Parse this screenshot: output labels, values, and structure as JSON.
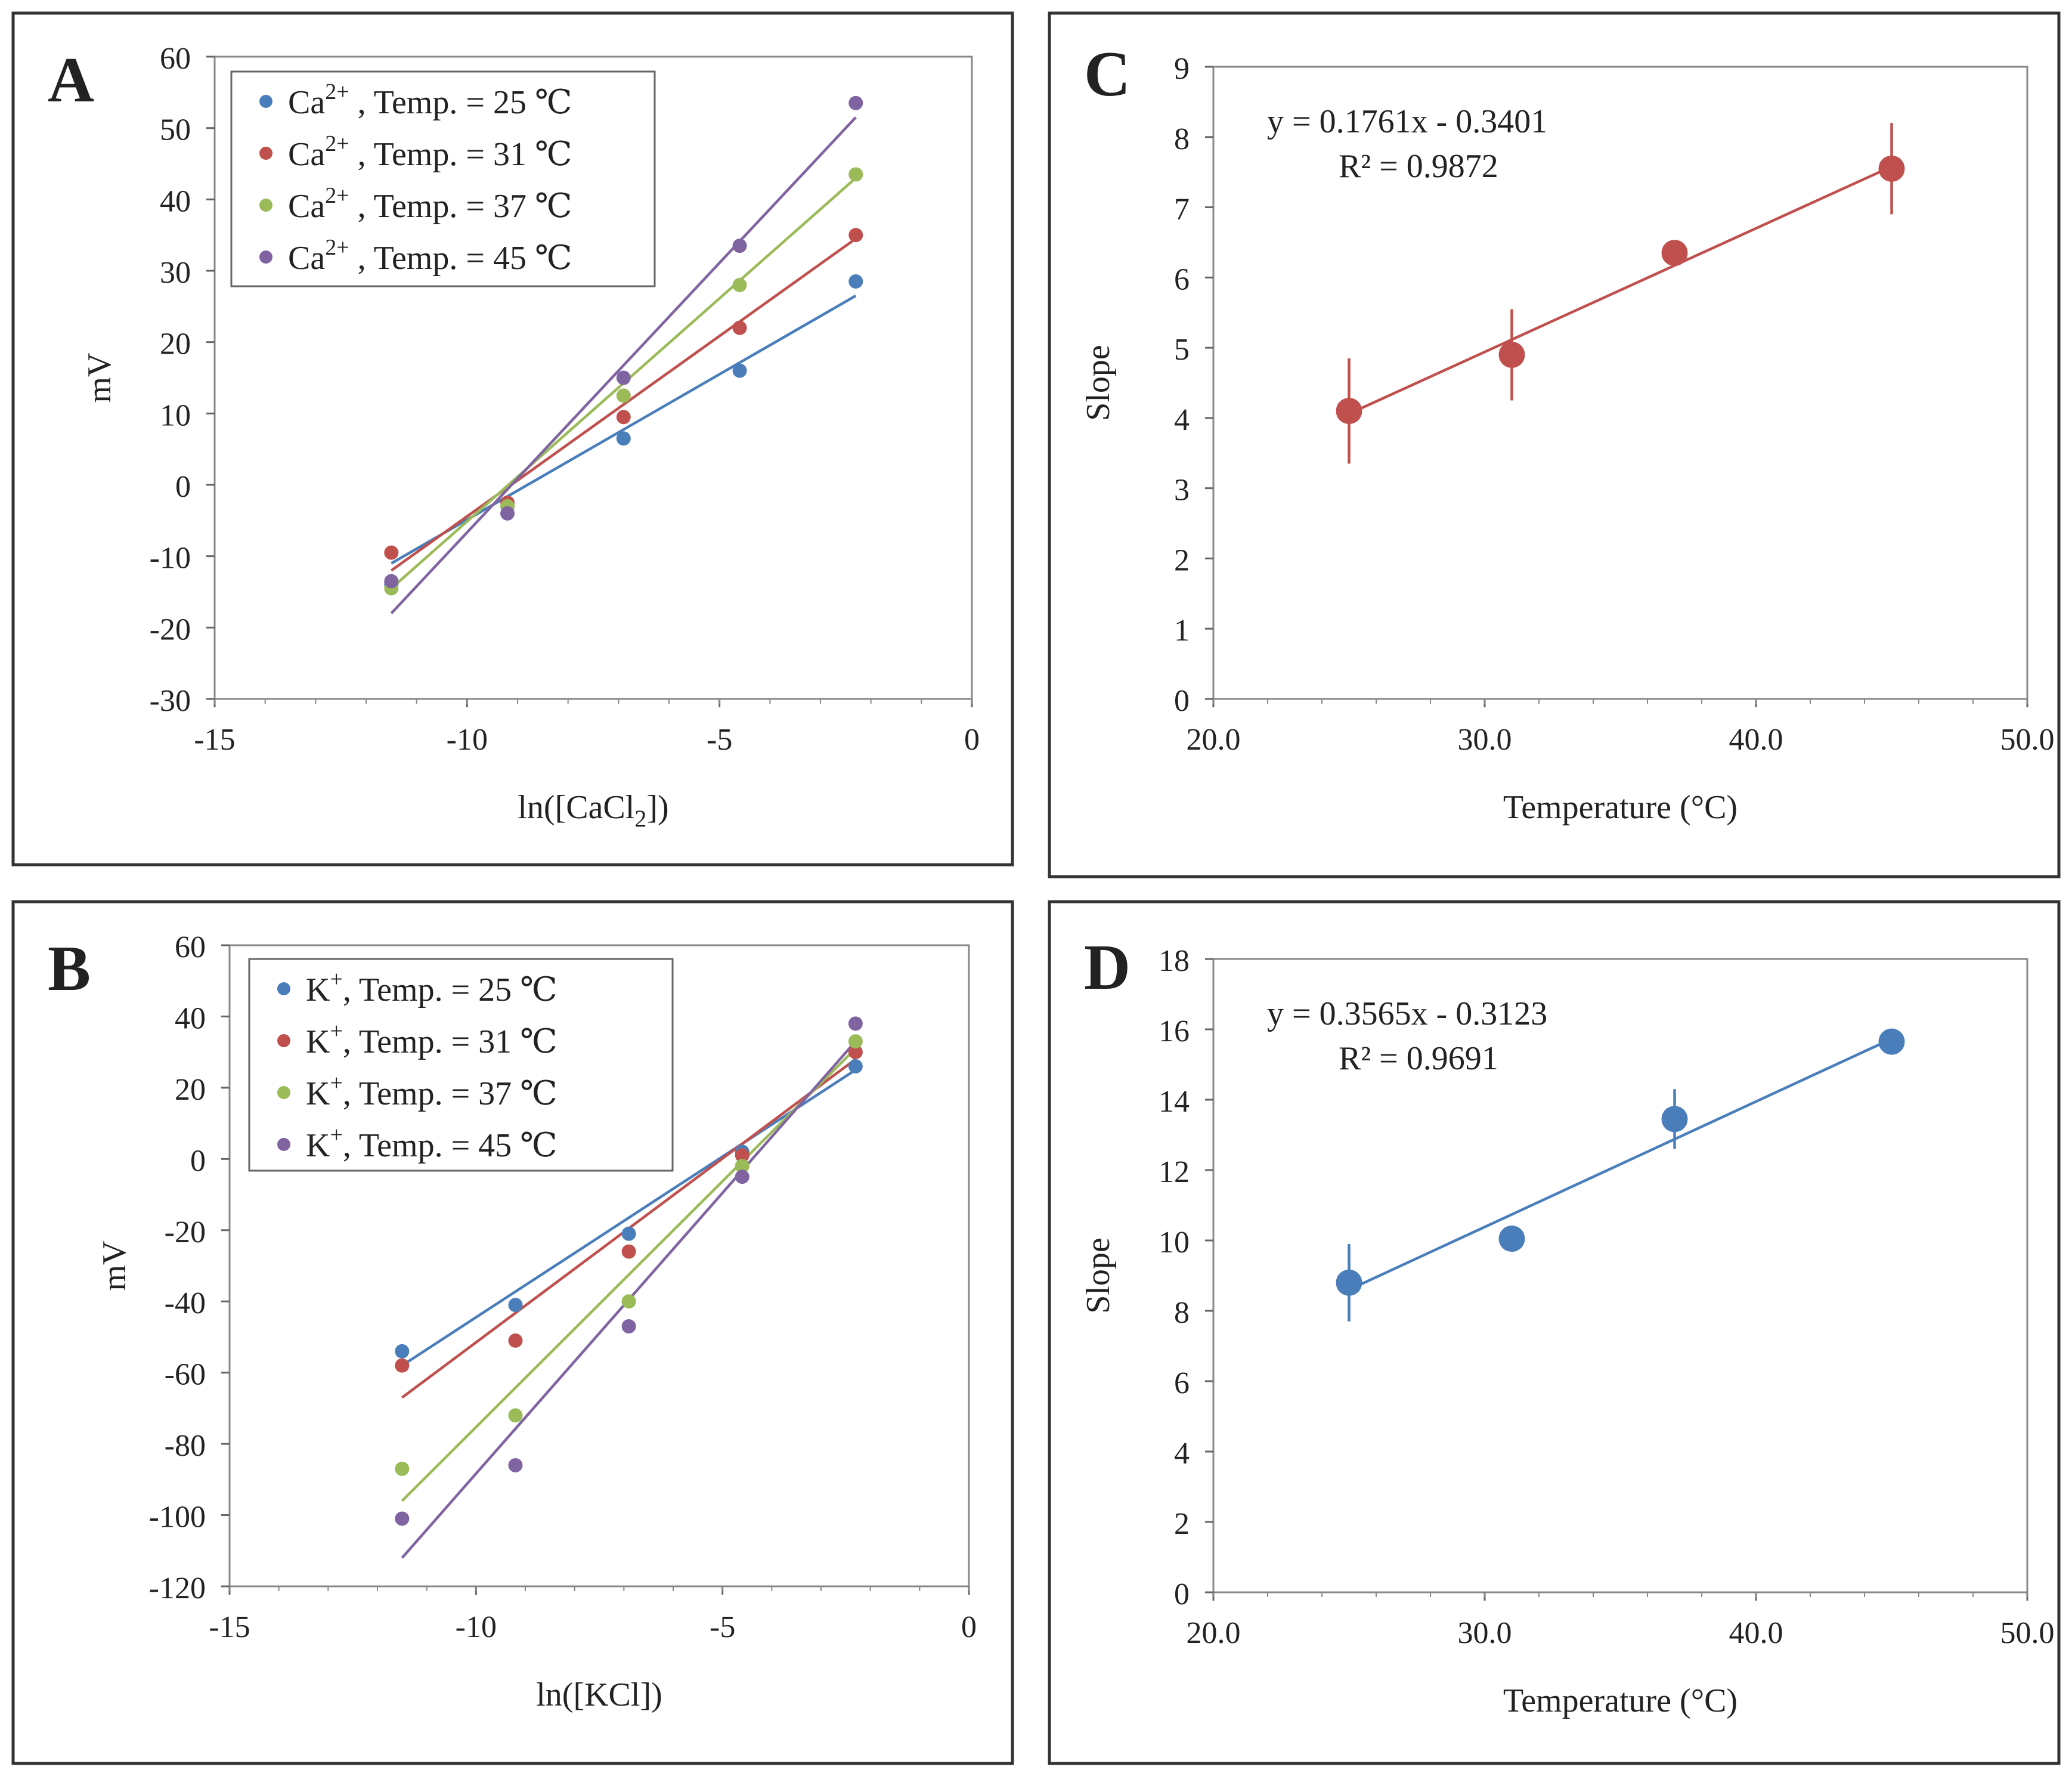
{
  "chart_data": [
    {
      "id": "A",
      "type": "scatter",
      "panel_label": "A",
      "xlabel": "ln([CaCl",
      "xlabel_sub": "2",
      "xlabel_end": "])",
      "ylabel": "mV",
      "xlim": [
        -15,
        0
      ],
      "ylim": [
        -30,
        60
      ],
      "xticks": [
        -15,
        -10,
        -5,
        0
      ],
      "yticks": [
        -30,
        -20,
        -10,
        0,
        10,
        20,
        30,
        40,
        50,
        60
      ],
      "x": [
        -11.5,
        -9.2,
        -6.9,
        -4.6,
        -2.3
      ],
      "series": [
        {
          "name": "Ca",
          "sup": "2+",
          "suffix": " , Temp. = 25 ℃",
          "color": "#4a7ebb",
          "values": [
            -14,
            -3,
            6.5,
            16,
            28.5
          ],
          "fit": [
            [
              -11.5,
              -11
            ],
            [
              -2.3,
              26.5
            ]
          ]
        },
        {
          "name": "Ca",
          "sup": "2+",
          "suffix": " , Temp. = 31 ℃",
          "color": "#c0504d",
          "values": [
            -9.5,
            -2.5,
            9.5,
            22,
            35
          ],
          "fit": [
            [
              -11.5,
              -12
            ],
            [
              -2.3,
              34.5
            ]
          ]
        },
        {
          "name": "Ca",
          "sup": "2+",
          "suffix": " , Temp. = 37 ℃",
          "color": "#9bbb59",
          "values": [
            -14.5,
            -3,
            12.5,
            28,
            43.5
          ],
          "fit": [
            [
              -11.5,
              -14.5
            ],
            [
              -2.3,
              43
            ]
          ]
        },
        {
          "name": "Ca",
          "sup": "2+",
          "suffix": " , Temp. = 45 ℃",
          "color": "#8064a2",
          "values": [
            -13.5,
            -4,
            15,
            33.5,
            53.5
          ],
          "fit": [
            [
              -11.5,
              -18
            ],
            [
              -2.3,
              51.5
            ]
          ]
        }
      ]
    },
    {
      "id": "B",
      "type": "scatter",
      "panel_label": "B",
      "xlabel": "ln([KCl])",
      "ylabel": "mV",
      "xlim": [
        -15,
        0
      ],
      "ylim": [
        -120,
        60
      ],
      "xticks": [
        -15,
        -10,
        -5,
        0
      ],
      "yticks": [
        -120,
        -100,
        -80,
        -60,
        -40,
        -20,
        0,
        20,
        40,
        60
      ],
      "x": [
        -11.5,
        -9.2,
        -6.9,
        -4.6,
        -2.3
      ],
      "series": [
        {
          "name": "K",
          "sup": "+",
          "suffix": ", Temp. = 25 ℃",
          "color": "#4a7ebb",
          "values": [
            -54,
            -41,
            -21,
            2,
            26
          ],
          "fit": [
            [
              -11.5,
              -58
            ],
            [
              -2.3,
              25
            ]
          ]
        },
        {
          "name": "K",
          "sup": "+",
          "suffix": ", Temp. = 31 ℃",
          "color": "#c0504d",
          "values": [
            -58,
            -51,
            -26,
            1,
            30
          ],
          "fit": [
            [
              -11.5,
              -67
            ],
            [
              -2.3,
              28
            ]
          ]
        },
        {
          "name": "K",
          "sup": "+",
          "suffix": ", Temp. = 37 ℃",
          "color": "#9bbb59",
          "values": [
            -87,
            -72,
            -40,
            -2,
            33
          ],
          "fit": [
            [
              -11.5,
              -96
            ],
            [
              -2.3,
              31
            ]
          ]
        },
        {
          "name": "K",
          "sup": "+",
          "suffix": ", Temp. = 45 ℃",
          "color": "#8064a2",
          "values": [
            -101,
            -86,
            -47,
            -5,
            38
          ],
          "fit": [
            [
              -11.5,
              -112
            ],
            [
              -2.3,
              33
            ]
          ]
        }
      ]
    },
    {
      "id": "C",
      "type": "scatter",
      "panel_label": "C",
      "xlabel": "Temperature (°C)",
      "ylabel": "Slope",
      "xlim": [
        20,
        50
      ],
      "ylim": [
        0,
        9
      ],
      "xticks": [
        20.0,
        30.0,
        40.0,
        50.0
      ],
      "xtick_labels": [
        "20.0",
        "30.0",
        "40.0",
        "50.0"
      ],
      "yticks": [
        0,
        1,
        2,
        3,
        4,
        5,
        6,
        7,
        8,
        9
      ],
      "color": "#c0504d",
      "points": [
        {
          "x": 25,
          "y": 4.1,
          "err": 0.75
        },
        {
          "x": 31,
          "y": 4.9,
          "err": 0.65
        },
        {
          "x": 37,
          "y": 6.35,
          "err": 0.15
        },
        {
          "x": 45,
          "y": 7.55,
          "err": 0.65
        }
      ],
      "fit": [
        [
          25,
          4.06
        ],
        [
          45,
          7.58
        ]
      ],
      "equation": "y = 0.1761x   - 0.3401",
      "r2": "R² = 0.9872"
    },
    {
      "id": "D",
      "type": "scatter",
      "panel_label": "D",
      "xlabel": "Temperature (°C)",
      "ylabel": "Slope",
      "xlim": [
        20,
        50
      ],
      "ylim": [
        0,
        18
      ],
      "xticks": [
        20.0,
        30.0,
        40.0,
        50.0
      ],
      "xtick_labels": [
        "20.0",
        "30.0",
        "40.0",
        "50.0"
      ],
      "yticks": [
        0,
        2,
        4,
        6,
        8,
        10,
        12,
        14,
        16,
        18
      ],
      "color": "#4a7ebb",
      "points": [
        {
          "x": 25,
          "y": 8.8,
          "err": 1.1
        },
        {
          "x": 31,
          "y": 10.05,
          "err": 0.3
        },
        {
          "x": 37,
          "y": 13.45,
          "err": 0.85
        },
        {
          "x": 45,
          "y": 15.65,
          "err": 0.2
        }
      ],
      "fit": [
        [
          25,
          8.6
        ],
        [
          45,
          15.73
        ]
      ],
      "equation": "y = 0.3565x   - 0.3123",
      "r2": "R² = 0.9691"
    }
  ]
}
